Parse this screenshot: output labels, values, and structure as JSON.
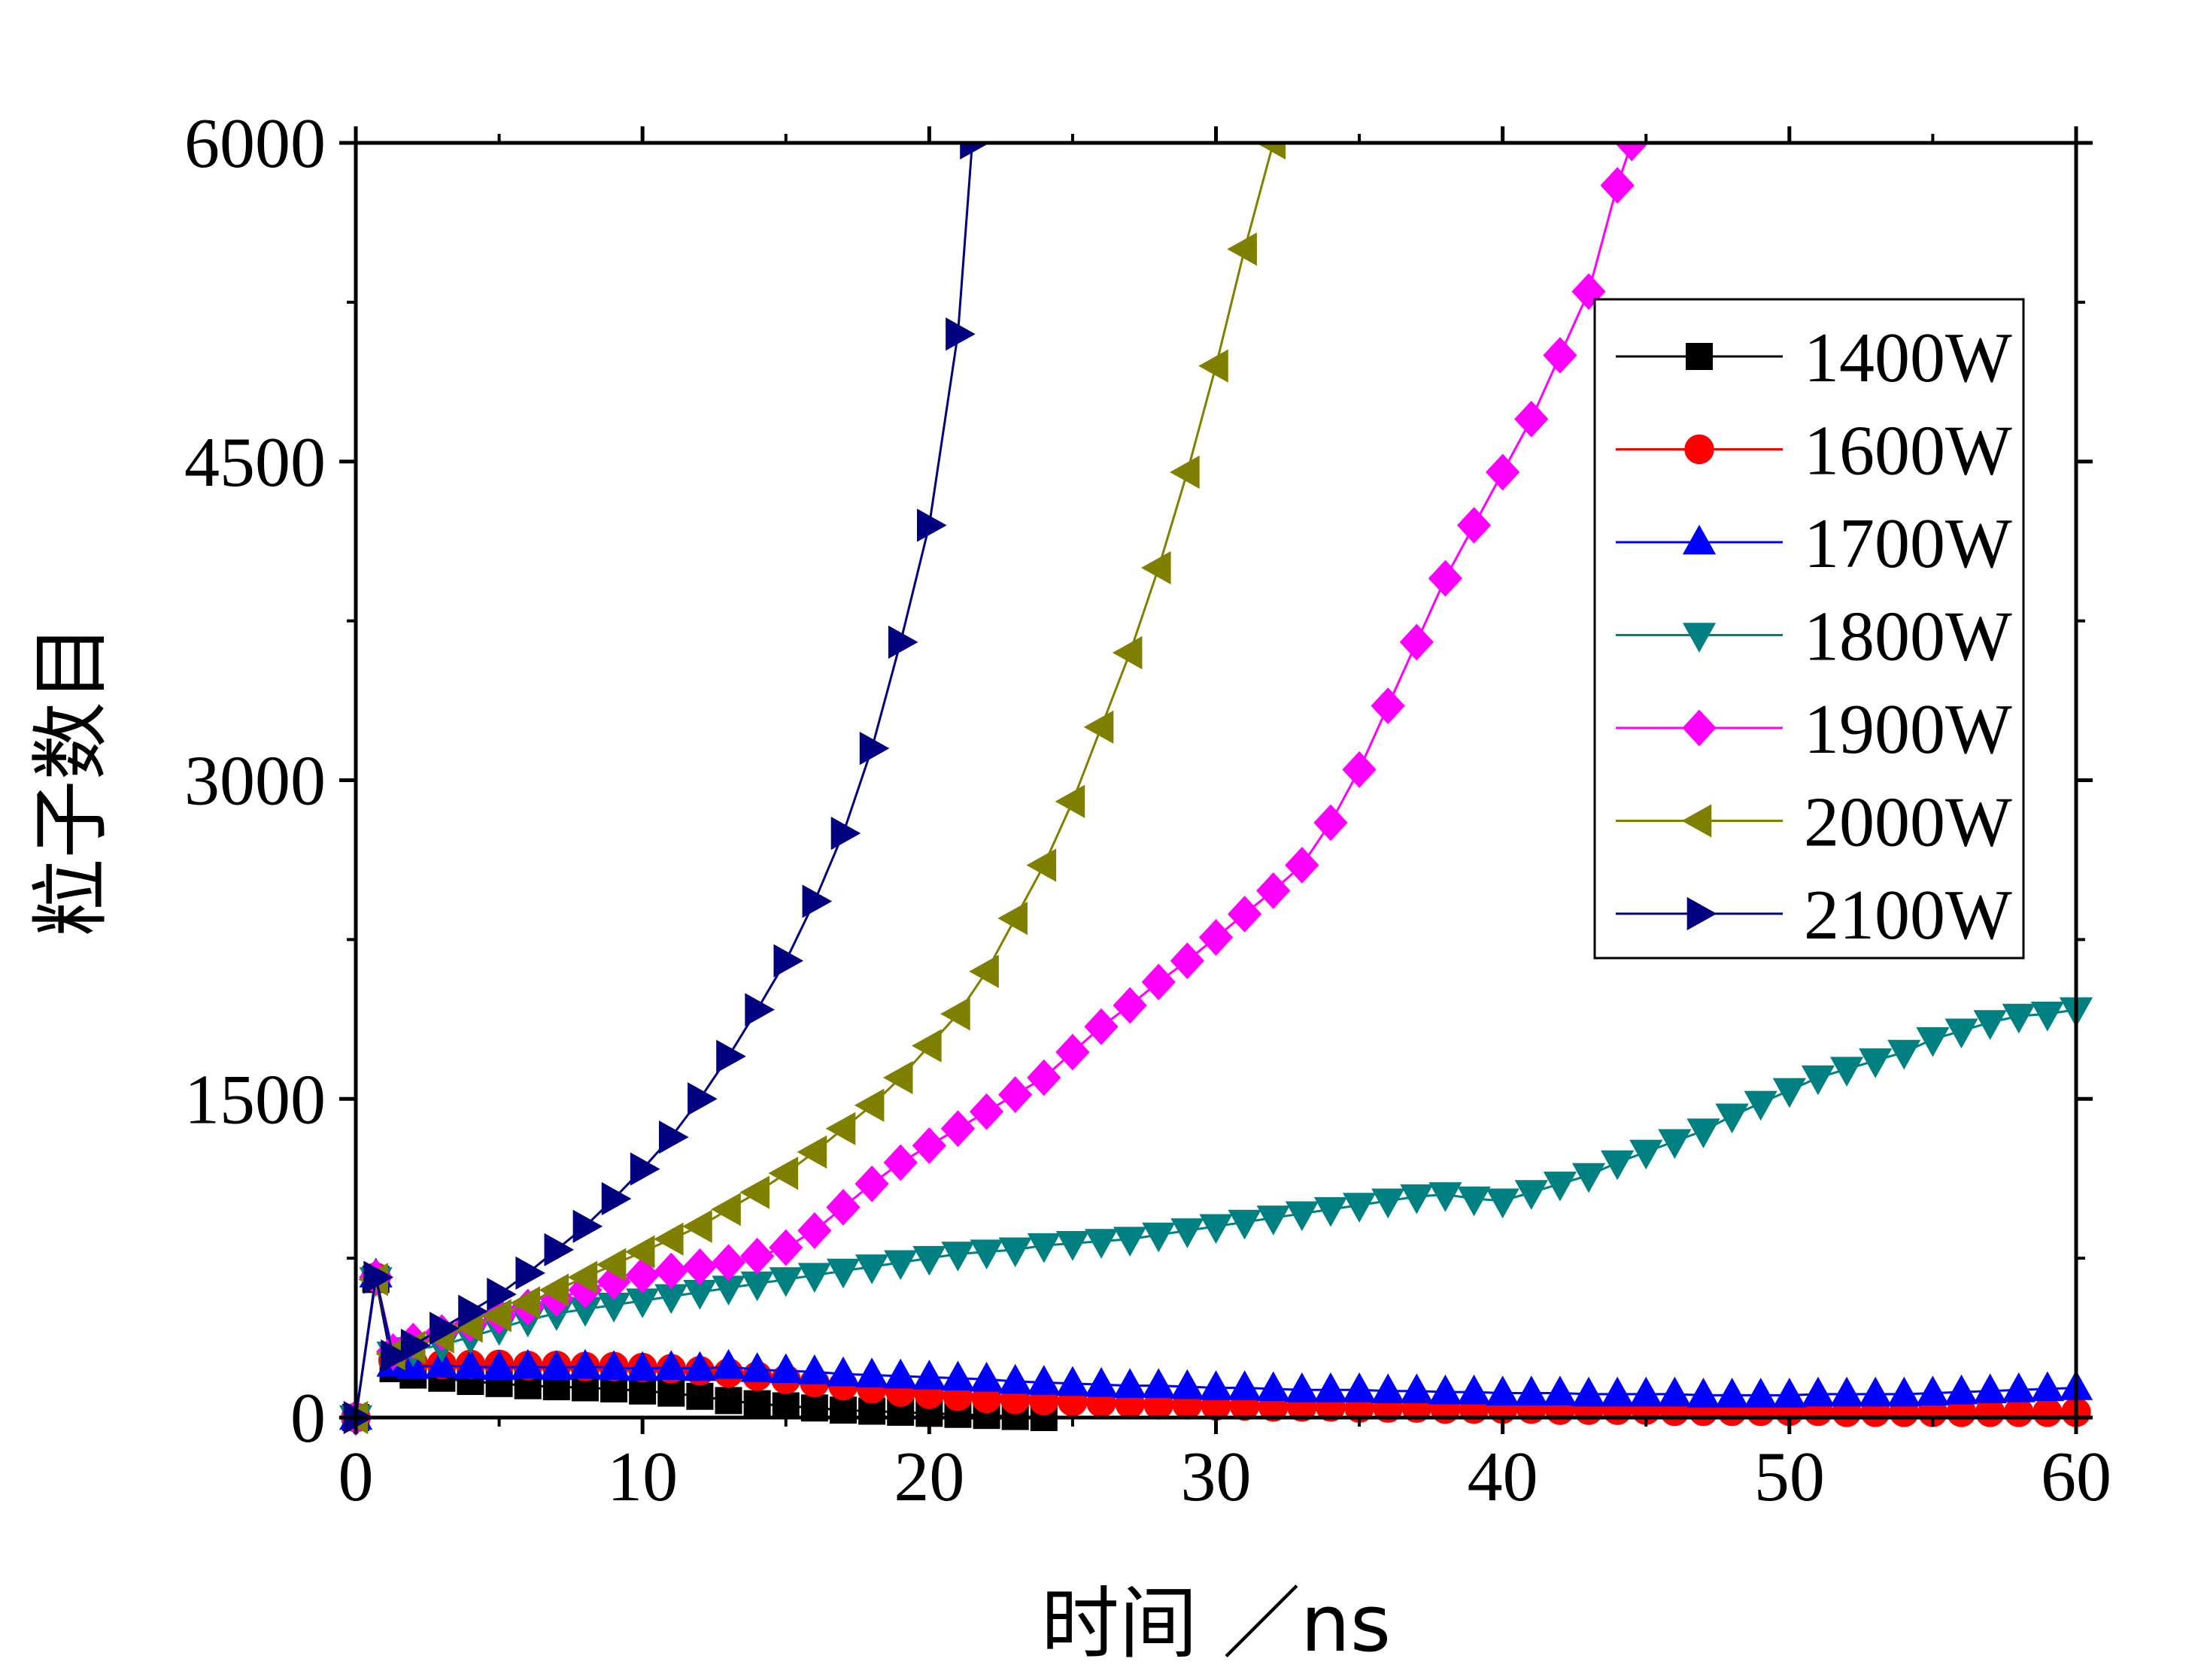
{
  "chart_data": {
    "type": "line",
    "title": "",
    "xlabel": "时间 ／ns",
    "ylabel": "粒子数目",
    "xlim": [
      0,
      60
    ],
    "ylim": [
      0,
      6000
    ],
    "xticks": [
      "0",
      "10",
      "20",
      "30",
      "40",
      "50",
      "60"
    ],
    "yticks": [
      "0",
      "1500",
      "3000",
      "4500",
      "6000"
    ],
    "legend_position": "top-right",
    "series": [
      {
        "name": "1400W",
        "color": "#000000",
        "marker": "square",
        "x": [
          0,
          0.7,
          1.3,
          2,
          3,
          4,
          5,
          6,
          7,
          8,
          9,
          10,
          11,
          12,
          13,
          14,
          15,
          16,
          17,
          18,
          19,
          20,
          21,
          22,
          23,
          24
        ],
        "y": [
          0,
          650,
          230,
          200,
          185,
          170,
          160,
          150,
          145,
          140,
          135,
          125,
          115,
          100,
          80,
          65,
          55,
          45,
          35,
          30,
          25,
          20,
          15,
          10,
          5,
          0
        ]
      },
      {
        "name": "1600W",
        "color": "#ff0000",
        "marker": "circle",
        "x": [
          0,
          0.7,
          1.3,
          2,
          3,
          4,
          5,
          6,
          7,
          8,
          9,
          10,
          11,
          12,
          13,
          14,
          15,
          16,
          17,
          18,
          19,
          20,
          21,
          22,
          23,
          24,
          25,
          26,
          27,
          28,
          29,
          30,
          31,
          32,
          33,
          34,
          35,
          36,
          37,
          38,
          39,
          40,
          41,
          42,
          43,
          44,
          45,
          46,
          47,
          48,
          49,
          50,
          51,
          52,
          53,
          54,
          55,
          56,
          57,
          58,
          59,
          60
        ],
        "y": [
          0,
          660,
          270,
          255,
          250,
          250,
          250,
          245,
          245,
          240,
          240,
          235,
          230,
          220,
          210,
          195,
          180,
          165,
          150,
          135,
          120,
          110,
          100,
          90,
          85,
          80,
          75,
          70,
          65,
          60,
          60,
          55,
          55,
          50,
          50,
          50,
          45,
          45,
          45,
          40,
          40,
          40,
          40,
          35,
          35,
          35,
          35,
          30,
          30,
          30,
          30,
          30,
          30,
          25,
          25,
          25,
          25,
          25,
          25,
          25,
          25,
          25
        ]
      },
      {
        "name": "1700W",
        "color": "#0000ff",
        "marker": "triangle-up",
        "x": [
          0,
          0.7,
          1.3,
          2,
          3,
          4,
          5,
          6,
          7,
          8,
          9,
          10,
          11,
          12,
          13,
          14,
          15,
          16,
          17,
          18,
          19,
          20,
          21,
          22,
          23,
          24,
          25,
          26,
          27,
          28,
          29,
          30,
          31,
          32,
          33,
          34,
          35,
          36,
          37,
          38,
          39,
          40,
          41,
          42,
          43,
          44,
          45,
          46,
          47,
          48,
          49,
          50,
          51,
          52,
          53,
          54,
          55,
          56,
          57,
          58,
          59,
          60
        ],
        "y": [
          0,
          670,
          250,
          240,
          245,
          240,
          235,
          240,
          235,
          240,
          235,
          230,
          235,
          230,
          240,
          225,
          220,
          215,
          205,
          200,
          195,
          190,
          185,
          180,
          170,
          165,
          160,
          155,
          150,
          150,
          145,
          140,
          140,
          135,
          130,
          130,
          130,
          125,
          125,
          120,
          120,
          115,
          115,
          115,
          110,
          110,
          110,
          110,
          105,
          105,
          105,
          105,
          110,
          110,
          110,
          110,
          115,
          120,
          125,
          130,
          135,
          140
        ]
      },
      {
        "name": "1800W",
        "color": "#008080",
        "marker": "triangle-down",
        "x": [
          0,
          0.7,
          1.3,
          2,
          3,
          4,
          5,
          6,
          7,
          8,
          9,
          10,
          11,
          12,
          13,
          14,
          15,
          16,
          17,
          18,
          19,
          20,
          21,
          22,
          23,
          24,
          25,
          26,
          27,
          28,
          29,
          30,
          31,
          32,
          33,
          34,
          35,
          36,
          37,
          38,
          39,
          40,
          41,
          42,
          43,
          44,
          45,
          46,
          47,
          48,
          49,
          50,
          51,
          52,
          53,
          54,
          55,
          56,
          57,
          58,
          59,
          60
        ],
        "y": [
          0,
          650,
          300,
          320,
          340,
          380,
          420,
          460,
          490,
          510,
          530,
          550,
          570,
          590,
          610,
          630,
          650,
          670,
          690,
          710,
          730,
          750,
          770,
          780,
          790,
          810,
          820,
          830,
          840,
          860,
          880,
          900,
          920,
          940,
          960,
          980,
          1000,
          1020,
          1040,
          1050,
          1030,
          1020,
          1060,
          1100,
          1140,
          1200,
          1250,
          1300,
          1350,
          1420,
          1480,
          1540,
          1600,
          1640,
          1680,
          1720,
          1780,
          1820,
          1860,
          1890,
          1900,
          1920
        ]
      },
      {
        "name": "1900W",
        "color": "#ff00ff",
        "marker": "diamond",
        "x": [
          0,
          0.7,
          1.3,
          2,
          3,
          4,
          5,
          6,
          7,
          8,
          9,
          10,
          11,
          12,
          13,
          14,
          15,
          16,
          17,
          18,
          19,
          20,
          21,
          22,
          23,
          24,
          25,
          26,
          27,
          28,
          29,
          30,
          31,
          32,
          33,
          34,
          35,
          36,
          37,
          38,
          39,
          40,
          41,
          42,
          43,
          44,
          44.5
        ],
        "y": [
          0,
          660,
          310,
          360,
          400,
          440,
          480,
          520,
          560,
          600,
          640,
          670,
          690,
          710,
          730,
          760,
          800,
          880,
          990,
          1100,
          1200,
          1280,
          1360,
          1440,
          1520,
          1600,
          1720,
          1840,
          1940,
          2050,
          2150,
          2260,
          2370,
          2480,
          2600,
          2800,
          3050,
          3350,
          3650,
          3950,
          4200,
          4450,
          4700,
          5000,
          5300,
          5800,
          6000
        ]
      },
      {
        "name": "2000W",
        "color": "#808000",
        "marker": "triangle-left",
        "x": [
          0,
          0.7,
          1.3,
          2,
          3,
          4,
          5,
          6,
          7,
          8,
          9,
          10,
          11,
          12,
          13,
          14,
          15,
          16,
          17,
          18,
          19,
          20,
          21,
          22,
          23,
          24,
          25,
          26,
          27,
          28,
          29,
          30,
          31,
          32
        ],
        "y": [
          0,
          650,
          300,
          330,
          380,
          430,
          480,
          540,
          600,
          660,
          720,
          780,
          840,
          900,
          980,
          1060,
          1150,
          1250,
          1360,
          1470,
          1600,
          1750,
          1900,
          2100,
          2350,
          2600,
          2900,
          3250,
          3600,
          4000,
          4450,
          4950,
          5500,
          6000
        ]
      },
      {
        "name": "2100W",
        "color": "#000080",
        "marker": "triangle-right",
        "x": [
          0,
          0.7,
          1.3,
          2,
          3,
          4,
          5,
          6,
          7,
          8,
          9,
          10,
          11,
          12,
          13,
          14,
          15,
          16,
          17,
          18,
          19,
          20,
          21,
          21.5
        ],
        "y": [
          0,
          660,
          290,
          340,
          420,
          500,
          580,
          680,
          790,
          900,
          1030,
          1170,
          1320,
          1500,
          1700,
          1920,
          2150,
          2430,
          2750,
          3150,
          3650,
          4200,
          5100,
          6000
        ]
      }
    ]
  }
}
